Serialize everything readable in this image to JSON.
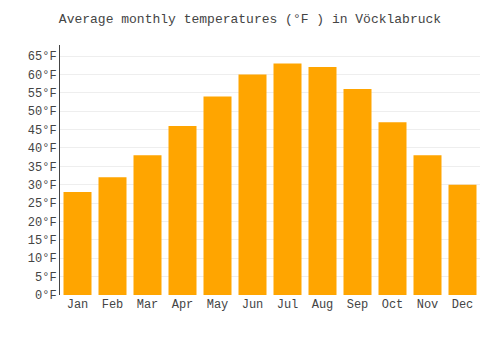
{
  "chart_data": {
    "type": "bar",
    "title": "Average monthly temperatures (°F ) in Vöcklabruck",
    "categories": [
      "Jan",
      "Feb",
      "Mar",
      "Apr",
      "May",
      "Jun",
      "Jul",
      "Aug",
      "Sep",
      "Oct",
      "Nov",
      "Dec"
    ],
    "values": [
      28,
      32,
      38,
      46,
      54,
      60,
      63,
      62,
      56,
      47,
      38,
      30
    ],
    "color": "#FFA500",
    "ylim": [
      0,
      68
    ],
    "yticks": [
      {
        "value": 0,
        "label": "0°F"
      },
      {
        "value": 5,
        "label": "5°F"
      },
      {
        "value": 10,
        "label": "10°F"
      },
      {
        "value": 15,
        "label": "15°F"
      },
      {
        "value": 20,
        "label": "20°F"
      },
      {
        "value": 25,
        "label": "25°F"
      },
      {
        "value": 30,
        "label": "30°F"
      },
      {
        "value": 35,
        "label": "35°F"
      },
      {
        "value": 40,
        "label": "40°F"
      },
      {
        "value": 45,
        "label": "45°F"
      },
      {
        "value": 50,
        "label": "50°F"
      },
      {
        "value": 55,
        "label": "55°F"
      },
      {
        "value": 60,
        "label": "60°F"
      },
      {
        "value": 65,
        "label": "65°F"
      }
    ],
    "grid": true
  }
}
